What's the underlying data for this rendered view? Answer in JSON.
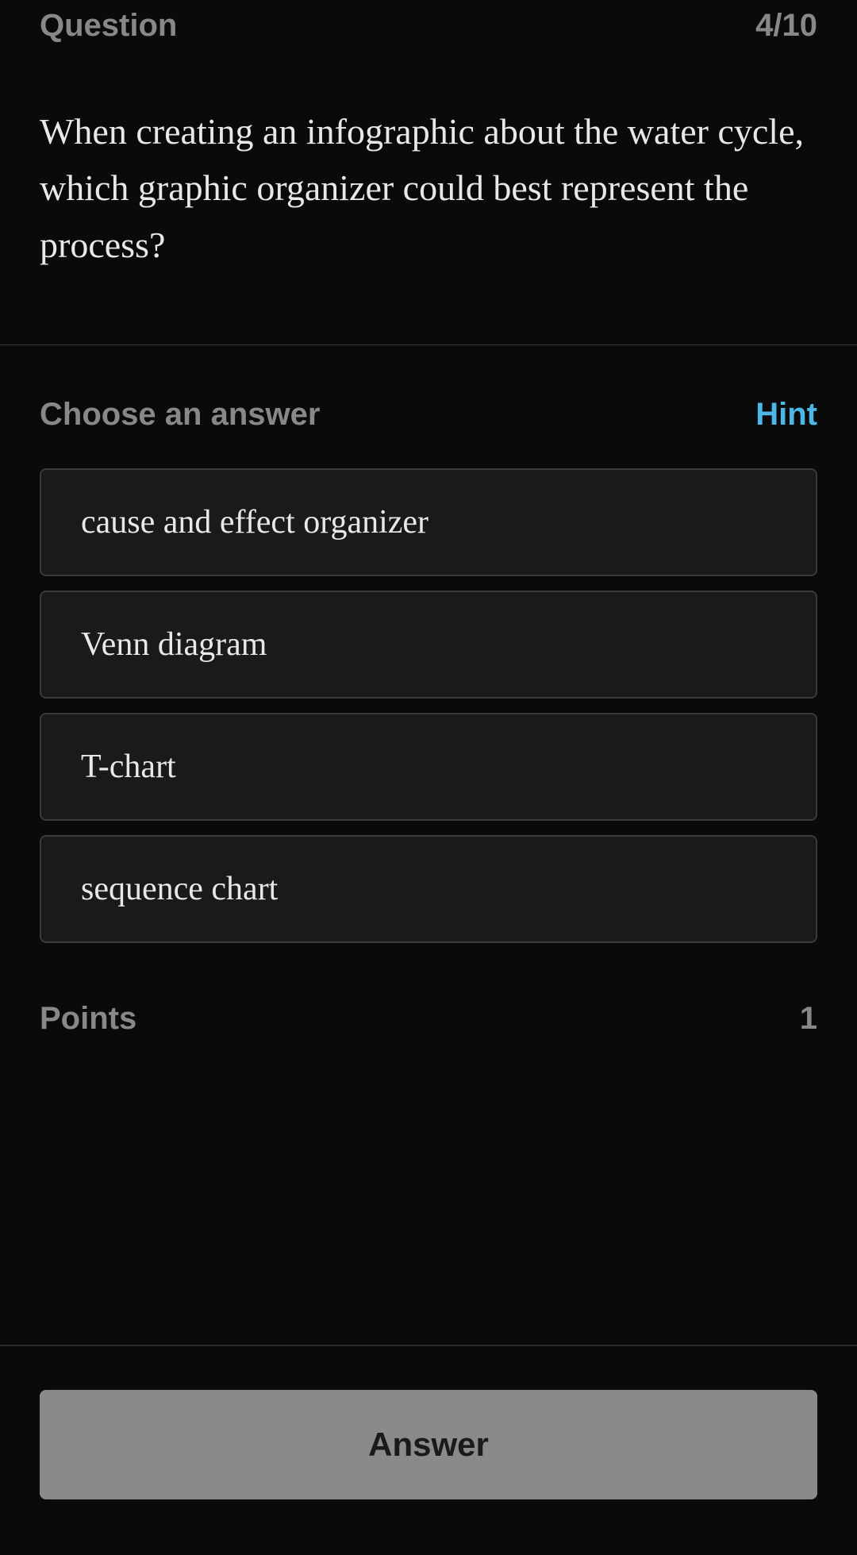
{
  "header": {
    "question_label": "Question",
    "counter": "4/10"
  },
  "question": {
    "text": "When creating an infographic about the water cycle, which graphic organizer could best represent the process?"
  },
  "answer_section": {
    "choose_label": "Choose an answer",
    "hint_label": "Hint"
  },
  "options": [
    "cause and effect organizer",
    "Venn diagram",
    "T-chart",
    "sequence chart"
  ],
  "points": {
    "label": "Points",
    "value": "1"
  },
  "footer": {
    "answer_button": "Answer"
  },
  "colors": {
    "background": "#0a0a0a",
    "text_primary": "#e8e8e8",
    "text_muted": "#888888",
    "hint_color": "#4db8e8",
    "option_bg": "#1a1a1a",
    "option_border": "#3a3a3a",
    "divider": "#3a3a3a",
    "button_bg": "#8a8a8a",
    "button_text": "#1a1a1a"
  }
}
